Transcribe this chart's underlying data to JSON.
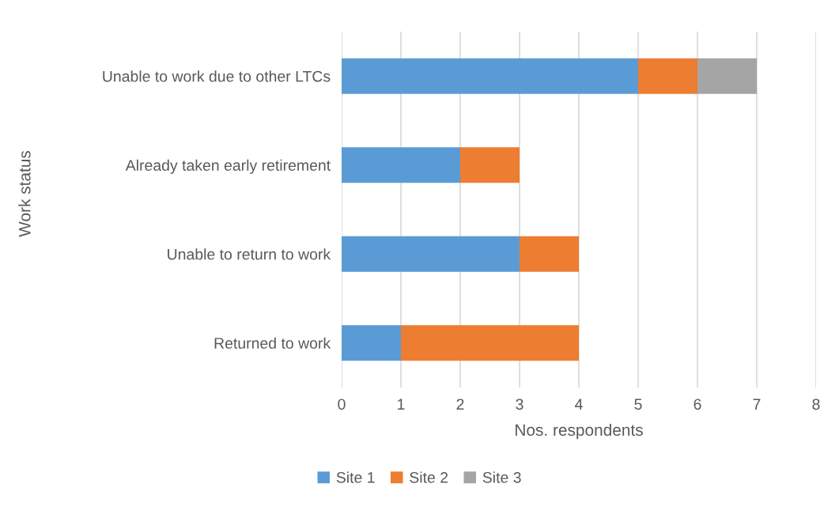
{
  "chart_data": {
    "type": "bar",
    "orientation": "horizontal",
    "stacked": true,
    "categories": [
      "Unable to work due to other LTCs",
      "Already taken early retirement",
      "Unable to return to work",
      "Returned to work"
    ],
    "series": [
      {
        "name": "Site 1",
        "color": "#5b9bd5",
        "values": [
          5,
          2,
          3,
          1
        ]
      },
      {
        "name": "Site 2",
        "color": "#ed7d31",
        "values": [
          1,
          1,
          1,
          3
        ]
      },
      {
        "name": "Site 3",
        "color": "#a5a5a5",
        "values": [
          1,
          0,
          0,
          0
        ]
      }
    ],
    "xlabel": "Nos. respondents",
    "ylabel": "Work status",
    "xlim": [
      0,
      8
    ],
    "xticks": [
      0,
      1,
      2,
      3,
      4,
      5,
      6,
      7,
      8
    ],
    "grid": "x",
    "legend": "bottom"
  }
}
